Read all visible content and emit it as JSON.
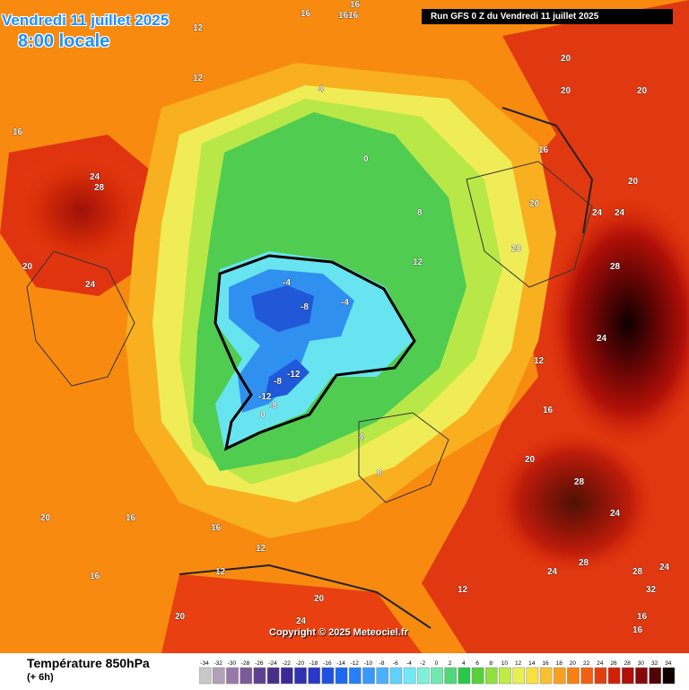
{
  "header": {
    "date": "Vendredi 11 juillet 2025",
    "local_time": "8:00 locale",
    "run_info": "Run GFS 0 Z du Vendredi 11 juillet 2025"
  },
  "footer": {
    "copyright": "Copyright © 2025 Meteociel.fr",
    "legend_title": "Température 850hPa",
    "legend_sub": "(+ 6h)"
  },
  "scale": {
    "ticks": [
      "-34",
      "-32",
      "-30",
      "-28",
      "-26",
      "-24",
      "-22",
      "-20",
      "-18",
      "-16",
      "-14",
      "-12",
      "-10",
      "-8",
      "-6",
      "-4",
      "-2",
      "0",
      "2",
      "4",
      "6",
      "8",
      "10",
      "12",
      "14",
      "16",
      "18",
      "20",
      "22",
      "24",
      "26",
      "28",
      "30",
      "32",
      "34"
    ],
    "colors": [
      "#c8c8c8",
      "#b0a0b8",
      "#9878a8",
      "#7a5a98",
      "#5e4090",
      "#48308a",
      "#3a2a98",
      "#3030b0",
      "#2838c8",
      "#2050e0",
      "#1c68f0",
      "#2880f8",
      "#3898fc",
      "#48b0fc",
      "#60d0fc",
      "#70e8f8",
      "#7cf0d8",
      "#70e8b0",
      "#50d878",
      "#28c848",
      "#58d038",
      "#90e040",
      "#c0ec48",
      "#e8f050",
      "#f8e040",
      "#f8c030",
      "#f8a020",
      "#f88010",
      "#f06010",
      "#e04010",
      "#d02008",
      "#b01008",
      "#880808",
      "#500404",
      "#100000"
    ]
  },
  "map_labels": [
    {
      "t": "16",
      "c": "white"
    },
    {
      "t": "1616",
      "c": "white"
    },
    {
      "t": "16",
      "c": "white"
    },
    {
      "t": "12",
      "c": "white"
    },
    {
      "t": "12",
      "c": "white"
    },
    {
      "t": "16",
      "c": "white"
    },
    {
      "t": "20",
      "c": "white"
    },
    {
      "t": "24",
      "c": "white"
    },
    {
      "t": "28",
      "c": "white"
    },
    {
      "t": "24",
      "c": "white"
    },
    {
      "t": "20",
      "c": "white"
    },
    {
      "t": "20",
      "c": "white"
    },
    {
      "t": "16",
      "c": "white"
    },
    {
      "t": "4",
      "c": "white"
    },
    {
      "t": "0",
      "c": "white"
    },
    {
      "t": "-4",
      "c": "white"
    },
    {
      "t": "-8",
      "c": "white"
    },
    {
      "t": "-4",
      "c": "white"
    },
    {
      "t": "-12",
      "c": "white"
    },
    {
      "t": "-8",
      "c": "white"
    },
    {
      "t": "-12",
      "c": "white"
    },
    {
      "t": "-8",
      "c": "white"
    },
    {
      "t": "0",
      "c": "white"
    },
    {
      "t": "12",
      "c": "white"
    },
    {
      "t": "8",
      "c": "white"
    },
    {
      "t": "24",
      "c": "white"
    },
    {
      "t": "28",
      "c": "white"
    },
    {
      "t": "24",
      "c": "white"
    },
    {
      "t": "28",
      "c": "white"
    },
    {
      "t": "24",
      "c": "white"
    },
    {
      "t": "28",
      "c": "white"
    },
    {
      "t": "28",
      "c": "white"
    },
    {
      "t": "24",
      "c": "white"
    },
    {
      "t": "20",
      "c": "white"
    },
    {
      "t": "16",
      "c": "white"
    },
    {
      "t": "12",
      "c": "white"
    },
    {
      "t": "12",
      "c": "white"
    },
    {
      "t": "16",
      "c": "white"
    },
    {
      "t": "20",
      "c": "white"
    },
    {
      "t": "24",
      "c": "white"
    },
    {
      "t": "20",
      "c": "white"
    },
    {
      "t": "16",
      "c": "white"
    },
    {
      "t": "12",
      "c": "white"
    },
    {
      "t": "8",
      "c": "white"
    },
    {
      "t": "4",
      "c": "white"
    },
    {
      "t": "20",
      "c": "white"
    },
    {
      "t": "20",
      "c": "white"
    },
    {
      "t": "20",
      "c": "white"
    },
    {
      "t": "24",
      "c": "white"
    },
    {
      "t": "28",
      "c": "white"
    },
    {
      "t": "32",
      "c": "white"
    },
    {
      "t": "24",
      "c": "white"
    },
    {
      "t": "16",
      "c": "white"
    },
    {
      "t": "12",
      "c": "white"
    },
    {
      "t": "20",
      "c": "white"
    },
    {
      "t": "16",
      "c": "white"
    },
    {
      "t": "16",
      "c": "white"
    },
    {
      "t": "20",
      "c": "white"
    }
  ]
}
